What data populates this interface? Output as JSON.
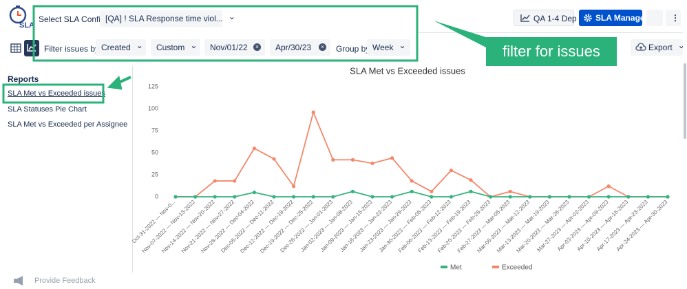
{
  "header": {
    "logo": "SLA",
    "config_label": "Select SLA Config:",
    "config_value": "[QA] ! SLA Response time viol...",
    "buttons": [
      "QA 1-4 Dep",
      "SLA Manager"
    ]
  },
  "filters": {
    "label": "Filter issues by:",
    "field": "Created",
    "range": "Custom",
    "start": "Nov/01/22",
    "end": "Apr/30/23",
    "group_label": "Group by",
    "group": "Week",
    "export": "Export"
  },
  "annotation": "filter for issues",
  "sidebar": {
    "title": "Reports",
    "items": [
      "SLA Met vs Exceeded issues",
      "SLA Statuses Pie Chart",
      "SLA Met vs Exceeded per Assignee"
    ]
  },
  "footer": "Provide Feedback",
  "chart_data": {
    "type": "line",
    "title": "SLA Met vs Exceeded issues",
    "categories": [
      "Oct-31-2022 — Nov-0...",
      "Nov-07-2022 — Nov-13-2022",
      "Nov-14-2022 — Nov-20-2022",
      "Nov-21-2022 — Nov-27-2022",
      "Nov-28-2022 — Dec-04-2022",
      "Dec-05-2022 — Dec-11-2022",
      "Dec-12-2022 — Dec-18-2022",
      "Dec-19-2022 — Dec-25-2022",
      "Dec-26-2022 — Jan-01-2023",
      "Jan-02-2023 — Jan-08-2023",
      "Jan-09-2023 — Jan-15-2023",
      "Jan-16-2023 — Jan-22-2023",
      "Jan-23-2023 — Jan-29-2023",
      "Jan-30-2023 — Feb-05-2023",
      "Feb-06-2023 — Feb-12-2023",
      "Feb-13-2023 — Feb-19-2023",
      "Feb-20-2023 — Feb-26-2023",
      "Feb-27-2023 — Mar-05-2023",
      "Mar-06-2023 — Mar-12-2023",
      "Mar-13-2023 — Mar-19-2023",
      "Mar-20-2023 — Mar-26-2023",
      "Mar-27-2023 — Apr-02-2023",
      "Apr-03-2023 — Apr-09-2023",
      "Apr-10-2023 — Apr-16-2023",
      "Apr-17-2023 — Apr-23-2023",
      "Apr-24-2023 — Apr-30-2023"
    ],
    "series": [
      {
        "name": "Met",
        "color": "#36b37e",
        "values": [
          0,
          0,
          0,
          0,
          5,
          0,
          0,
          0,
          0,
          6,
          0,
          0,
          6,
          0,
          0,
          6,
          0,
          0,
          0,
          0,
          0,
          0,
          0,
          0,
          0,
          0
        ]
      },
      {
        "name": "Exceeded",
        "color": "#f4876a",
        "values": [
          0,
          0,
          18,
          18,
          55,
          43,
          12,
          96,
          42,
          42,
          38,
          44,
          18,
          6,
          30,
          19,
          0,
          6,
          0,
          0,
          0,
          0,
          12,
          0,
          0,
          0
        ]
      }
    ],
    "ylim": [
      0,
      125
    ],
    "yticks": [
      0,
      25,
      50,
      75,
      100,
      125
    ],
    "grid": false,
    "legend": "bottom"
  }
}
